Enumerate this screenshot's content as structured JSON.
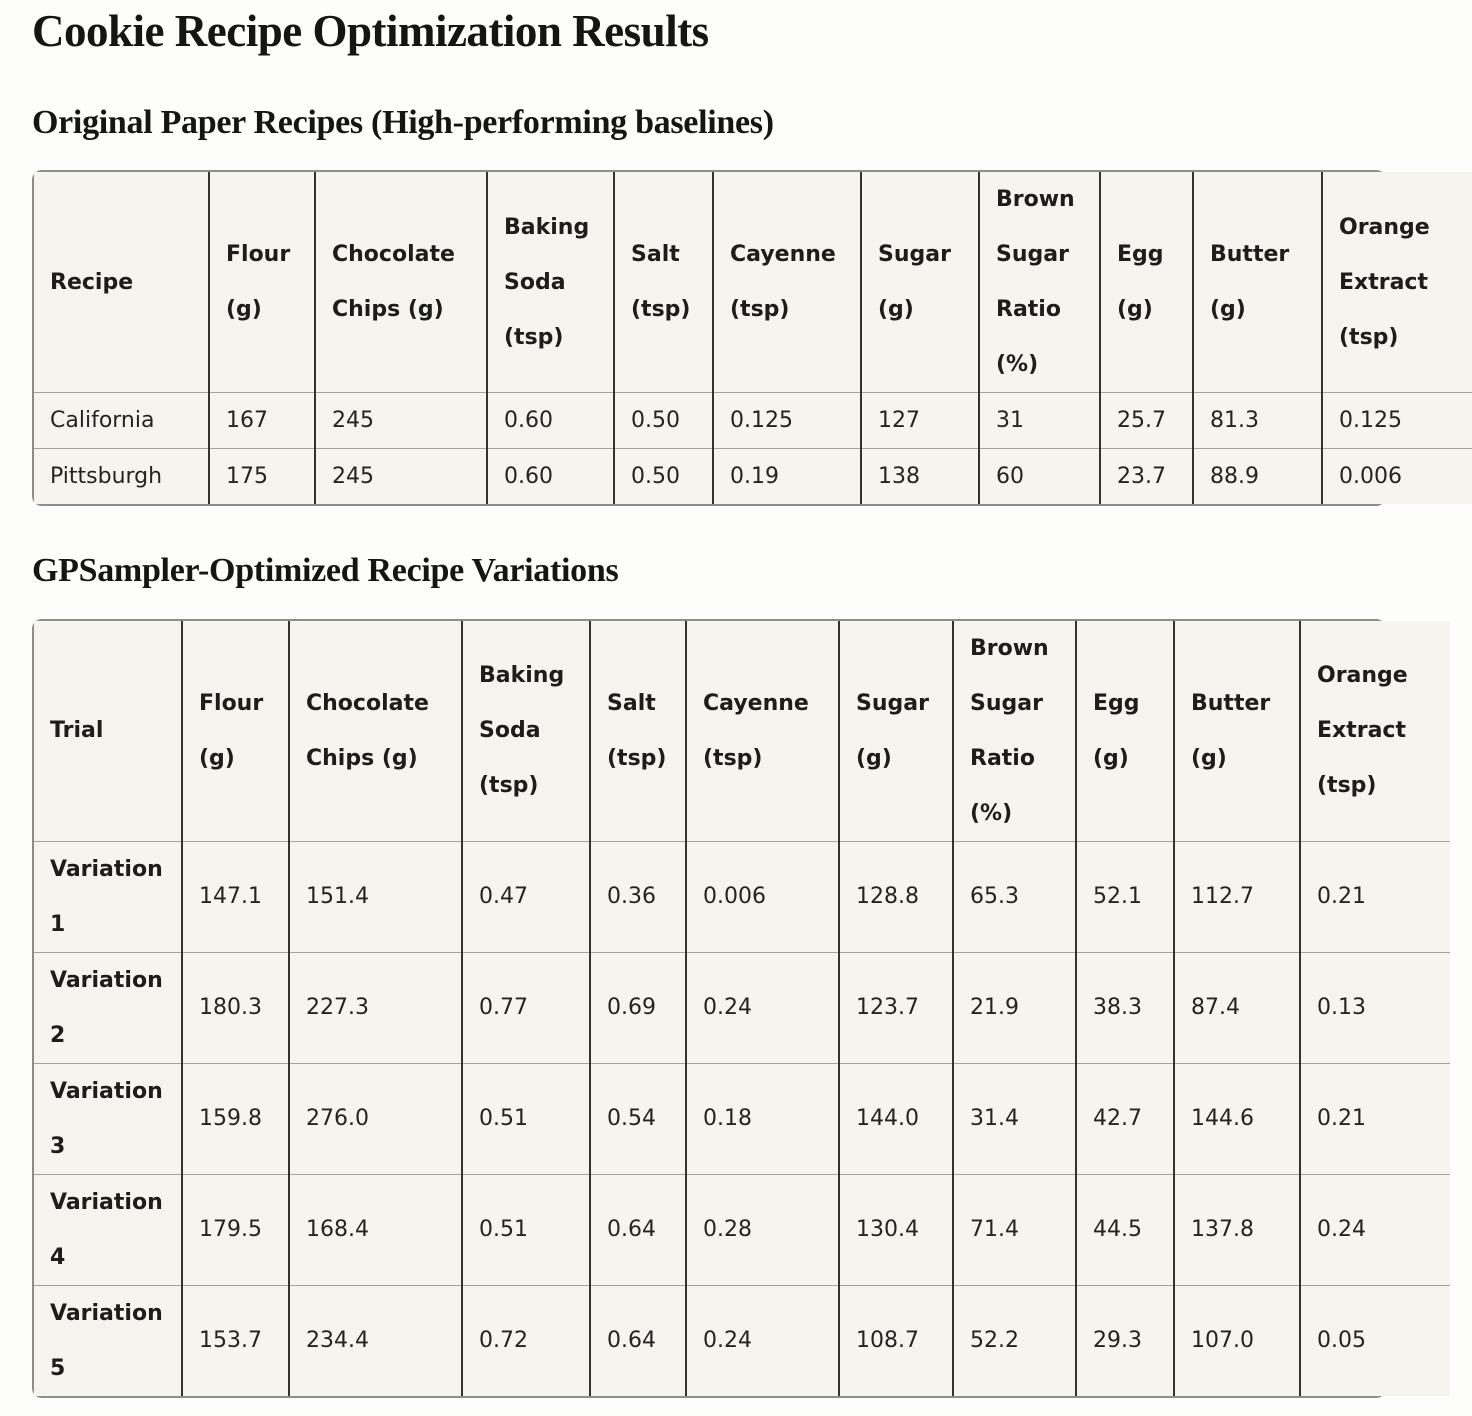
{
  "page": {
    "title": "Cookie Recipe Optimization Results"
  },
  "sections": {
    "baselines": {
      "heading": "Original Paper Recipes (High-performing baselines)"
    },
    "variations": {
      "heading": "GPSampler-Optimized Recipe Variations"
    }
  },
  "tables": {
    "baselines": {
      "columns": [
        "Recipe",
        "Flour (g)",
        "Chocolate Chips (g)",
        "Baking Soda (tsp)",
        "Salt (tsp)",
        "Cayenne (tsp)",
        "Sugar (g)",
        "Brown Sugar Ratio (%)",
        "Egg (g)",
        "Butter (g)",
        "Orange Extract (tsp)"
      ],
      "rows": [
        {
          "label": "California",
          "values": [
            "167",
            "245",
            "0.60",
            "0.50",
            "0.125",
            "127",
            "31",
            "25.7",
            "81.3",
            "0.125"
          ]
        },
        {
          "label": "Pittsburgh",
          "values": [
            "175",
            "245",
            "0.60",
            "0.50",
            "0.19",
            "138",
            "60",
            "23.7",
            "88.9",
            "0.006"
          ]
        }
      ]
    },
    "variations": {
      "columns": [
        "Trial",
        "Flour (g)",
        "Chocolate Chips (g)",
        "Baking Soda (tsp)",
        "Salt (tsp)",
        "Cayenne (tsp)",
        "Sugar (g)",
        "Brown Sugar Ratio (%)",
        "Egg (g)",
        "Butter (g)",
        "Orange Extract (tsp)"
      ],
      "rows": [
        {
          "label": "Variation 1",
          "values": [
            "147.1",
            "151.4",
            "0.47",
            "0.36",
            "0.006",
            "128.8",
            "65.3",
            "52.1",
            "112.7",
            "0.21"
          ]
        },
        {
          "label": "Variation 2",
          "values": [
            "180.3",
            "227.3",
            "0.77",
            "0.69",
            "0.24",
            "123.7",
            "21.9",
            "38.3",
            "87.4",
            "0.13"
          ]
        },
        {
          "label": "Variation 3",
          "values": [
            "159.8",
            "276.0",
            "0.51",
            "0.54",
            "0.18",
            "144.0",
            "31.4",
            "42.7",
            "144.6",
            "0.21"
          ]
        },
        {
          "label": "Variation 4",
          "values": [
            "179.5",
            "168.4",
            "0.51",
            "0.64",
            "0.28",
            "130.4",
            "71.4",
            "44.5",
            "137.8",
            "0.24"
          ]
        },
        {
          "label": "Variation 5",
          "values": [
            "153.7",
            "234.4",
            "0.72",
            "0.64",
            "0.24",
            "108.7",
            "52.2",
            "29.3",
            "107.0",
            "0.05"
          ]
        }
      ]
    }
  }
}
